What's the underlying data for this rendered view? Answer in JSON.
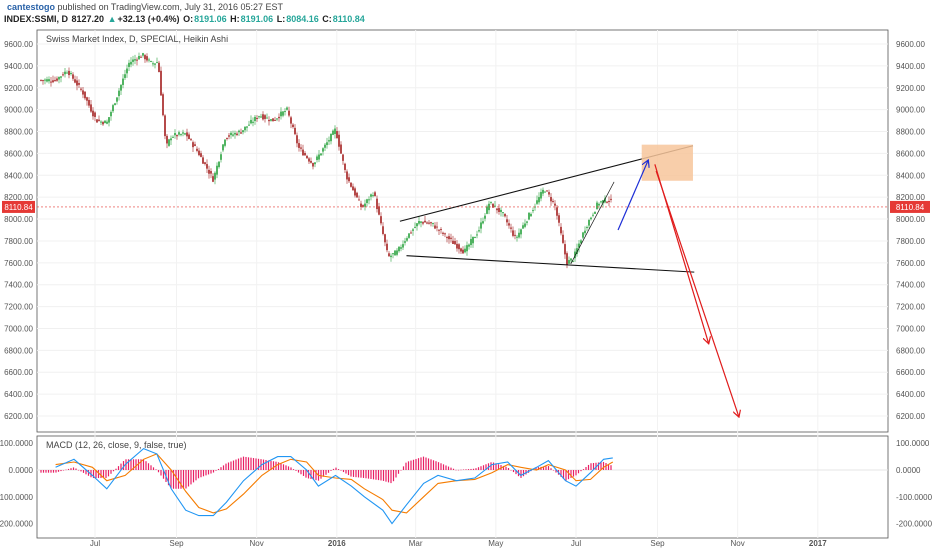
{
  "header": {
    "user": "cantestogo",
    "published": "published on TradingView.com, July 31, 2016 05:27 EST",
    "symbol": "INDEX:SSMI, D",
    "last": "8127.20",
    "change_icon": "up-triangle-icon",
    "change": "+32.13 (+0.4%)",
    "o_label": "O:",
    "o": "8191.06",
    "h_label": "H:",
    "h": "8191.06",
    "l_label": "L:",
    "l": "8084.16",
    "c_label": "C:",
    "c": "8110.84"
  },
  "colors": {
    "up": "#26a13b",
    "down": "#a31d1d",
    "macd": "#2196f3",
    "signal": "#f57c00",
    "hist": "#e91e63",
    "price_line": "#e53935",
    "projection_blue": "#1e2fd6",
    "projection_red": "#e01b1b",
    "target_box": "#f7c69b"
  },
  "chart_data": [
    {
      "type": "candlestick",
      "title": "Swiss Market Index, D, SPECIAL, Heikin Ashi",
      "x_tick_labels": [
        "Jul",
        "Sep",
        "Nov",
        "2016",
        "Mar",
        "May",
        "Jul",
        "Sep",
        "Nov",
        "2017"
      ],
      "y_tick_labels": [
        "9600.00",
        "9400.00",
        "9200.00",
        "9000.00",
        "8800.00",
        "8600.00",
        "8400.00",
        "8200.00",
        "8000.00",
        "7800.00",
        "7600.00",
        "7400.00",
        "7200.00",
        "7000.00",
        "6800.00",
        "6600.00",
        "6400.00",
        "6200.00"
      ],
      "y_ticks": [
        9600,
        9400,
        9200,
        9000,
        8800,
        8600,
        8400,
        8200,
        8000,
        7800,
        7600,
        7400,
        7200,
        7000,
        6800,
        6600,
        6400,
        6200
      ],
      "ylim": [
        6020,
        9800
      ],
      "last_price_label": "8110.84",
      "last_price": 8110.84,
      "price_path": [
        [
          "2015-06-01",
          9270
        ],
        [
          "2015-06-10",
          9360
        ],
        [
          "2015-06-22",
          9150
        ],
        [
          "2015-07-02",
          8900
        ],
        [
          "2015-07-10",
          8880
        ],
        [
          "2015-07-20",
          9200
        ],
        [
          "2015-07-27",
          9430
        ],
        [
          "2015-08-06",
          9500
        ],
        [
          "2015-08-13",
          9420
        ],
        [
          "2015-08-18",
          9440
        ],
        [
          "2015-08-24",
          8650
        ],
        [
          "2015-08-28",
          8760
        ],
        [
          "2015-09-08",
          8780
        ],
        [
          "2015-09-18",
          8600
        ],
        [
          "2015-09-29",
          8360
        ],
        [
          "2015-10-08",
          8750
        ],
        [
          "2015-10-20",
          8800
        ],
        [
          "2015-11-03",
          8950
        ],
        [
          "2015-11-13",
          8900
        ],
        [
          "2015-11-24",
          9000
        ],
        [
          "2015-12-03",
          8650
        ],
        [
          "2015-12-14",
          8500
        ],
        [
          "2015-12-22",
          8650
        ],
        [
          "2015-12-31",
          8820
        ],
        [
          "2016-01-08",
          8400
        ],
        [
          "2016-01-20",
          8100
        ],
        [
          "2016-01-29",
          8250
        ],
        [
          "2016-02-09",
          7650
        ],
        [
          "2016-02-16",
          7700
        ],
        [
          "2016-02-24",
          7850
        ],
        [
          "2016-03-04",
          7980
        ],
        [
          "2016-03-14",
          7950
        ],
        [
          "2016-03-28",
          7800
        ],
        [
          "2016-04-07",
          7700
        ],
        [
          "2016-04-18",
          7900
        ],
        [
          "2016-04-26",
          8150
        ],
        [
          "2016-05-06",
          8050
        ],
        [
          "2016-05-16",
          7820
        ],
        [
          "2016-05-27",
          8050
        ],
        [
          "2016-06-07",
          8280
        ],
        [
          "2016-06-15",
          8120
        ],
        [
          "2016-06-24",
          7600
        ],
        [
          "2016-06-29",
          7640
        ],
        [
          "2016-07-08",
          7920
        ],
        [
          "2016-07-18",
          8150
        ],
        [
          "2016-07-27",
          8180
        ],
        [
          "2016-07-29",
          8110
        ]
      ],
      "annotations": [
        {
          "name": "upper-trendline",
          "from": [
            "2016-02-18",
            7980
          ],
          "to": [
            "2016-09-28",
            8670
          ]
        },
        {
          "name": "lower-trendline",
          "from": [
            "2016-02-23",
            7665
          ],
          "to": [
            "2016-09-29",
            7515
          ]
        },
        {
          "name": "rising-channel-line",
          "from": [
            "2016-06-27",
            7590
          ],
          "to": [
            "2016-07-30",
            8340
          ]
        },
        {
          "name": "target-box",
          "from": [
            "2016-08-20",
            8350
          ],
          "to": [
            "2016-09-28",
            8680
          ]
        },
        {
          "name": "blue-projection-arrow",
          "from": [
            "2016-08-02",
            7900
          ],
          "to": [
            "2016-08-25",
            8540
          ]
        },
        {
          "name": "red-projection-arrow-1",
          "from": [
            "2016-08-30",
            8500
          ],
          "to": [
            "2016-10-10",
            6860
          ]
        },
        {
          "name": "red-projection-arrow-2",
          "from": [
            "2016-08-31",
            8440
          ],
          "to": [
            "2016-11-02",
            6190
          ]
        }
      ]
    },
    {
      "type": "line",
      "title": "MACD (12, 26, close, 9, false, true)",
      "y_tick_labels": [
        "100.0000",
        "0.0000",
        "-100.0000",
        "-200.0000"
      ],
      "y_ticks": [
        100,
        0,
        -100,
        -200
      ],
      "ylim": [
        -230,
        125
      ],
      "series": [
        {
          "key": "macd",
          "points": [
            [
              "2015-06-01",
              10
            ],
            [
              "2015-06-15",
              40
            ],
            [
              "2015-06-29",
              -20
            ],
            [
              "2015-07-10",
              -70
            ],
            [
              "2015-07-24",
              20
            ],
            [
              "2015-08-07",
              80
            ],
            [
              "2015-08-17",
              60
            ],
            [
              "2015-08-28",
              -70
            ],
            [
              "2015-09-08",
              -150
            ],
            [
              "2015-09-18",
              -170
            ],
            [
              "2015-09-29",
              -170
            ],
            [
              "2015-10-09",
              -120
            ],
            [
              "2015-10-22",
              -40
            ],
            [
              "2015-11-05",
              20
            ],
            [
              "2015-11-17",
              50
            ],
            [
              "2015-11-27",
              50
            ],
            [
              "2015-12-09",
              0
            ],
            [
              "2015-12-18",
              -60
            ],
            [
              "2015-12-31",
              -20
            ],
            [
              "2016-01-12",
              -60
            ],
            [
              "2016-01-22",
              -100
            ],
            [
              "2016-02-05",
              -150
            ],
            [
              "2016-02-12",
              -200
            ],
            [
              "2016-02-23",
              -130
            ],
            [
              "2016-03-07",
              -50
            ],
            [
              "2016-03-18",
              -20
            ],
            [
              "2016-04-01",
              -40
            ],
            [
              "2016-04-15",
              -30
            ],
            [
              "2016-04-28",
              20
            ],
            [
              "2016-05-10",
              30
            ],
            [
              "2016-05-20",
              -20
            ],
            [
              "2016-06-01",
              10
            ],
            [
              "2016-06-10",
              35
            ],
            [
              "2016-06-23",
              -40
            ],
            [
              "2016-07-01",
              -60
            ],
            [
              "2016-07-12",
              -10
            ],
            [
              "2016-07-22",
              40
            ],
            [
              "2016-07-29",
              45
            ]
          ]
        },
        {
          "key": "signal",
          "points": [
            [
              "2015-06-01",
              20
            ],
            [
              "2015-06-15",
              30
            ],
            [
              "2015-06-29",
              10
            ],
            [
              "2015-07-10",
              -40
            ],
            [
              "2015-07-24",
              -20
            ],
            [
              "2015-08-07",
              40
            ],
            [
              "2015-08-17",
              60
            ],
            [
              "2015-08-28",
              0
            ],
            [
              "2015-09-08",
              -80
            ],
            [
              "2015-09-18",
              -140
            ],
            [
              "2015-09-29",
              -160
            ],
            [
              "2015-10-09",
              -145
            ],
            [
              "2015-10-22",
              -90
            ],
            [
              "2015-11-05",
              -20
            ],
            [
              "2015-11-17",
              20
            ],
            [
              "2015-11-27",
              40
            ],
            [
              "2015-12-09",
              30
            ],
            [
              "2015-12-18",
              -20
            ],
            [
              "2015-12-31",
              -30
            ],
            [
              "2016-01-12",
              -35
            ],
            [
              "2016-01-22",
              -70
            ],
            [
              "2016-02-05",
              -110
            ],
            [
              "2016-02-12",
              -150
            ],
            [
              "2016-02-23",
              -160
            ],
            [
              "2016-03-07",
              -100
            ],
            [
              "2016-03-18",
              -50
            ],
            [
              "2016-04-01",
              -40
            ],
            [
              "2016-04-15",
              -35
            ],
            [
              "2016-04-28",
              -10
            ],
            [
              "2016-05-10",
              20
            ],
            [
              "2016-05-20",
              10
            ],
            [
              "2016-06-01",
              0
            ],
            [
              "2016-06-10",
              20
            ],
            [
              "2016-06-23",
              0
            ],
            [
              "2016-07-01",
              -40
            ],
            [
              "2016-07-12",
              -35
            ],
            [
              "2016-07-22",
              10
            ],
            [
              "2016-07-29",
              30
            ]
          ]
        }
      ]
    }
  ]
}
